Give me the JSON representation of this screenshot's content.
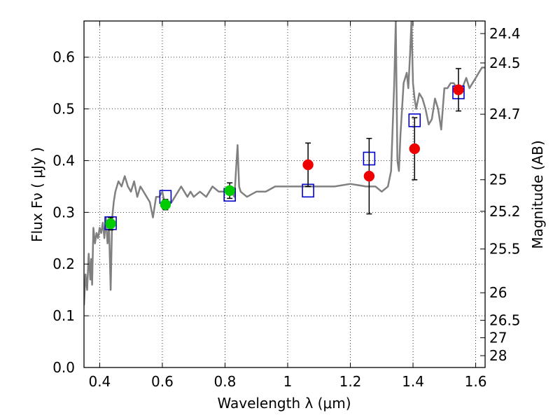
{
  "chart_data": {
    "type": "scatter",
    "xlabel": "Wavelength  λ (μm)",
    "ylabel": "Flux  Fν  ( μJy )",
    "ylabel_right": "Magnitude (AB)",
    "xlim": [
      0.35,
      1.63
    ],
    "ylim": [
      0.0,
      0.67
    ],
    "grid": true,
    "x_ticks": [
      0.4,
      0.6,
      0.8,
      1.0,
      1.2,
      1.4,
      1.6
    ],
    "x_tick_labels": [
      "0.4",
      "0.6",
      "0.8",
      "1",
      "1.2",
      "1.4",
      "1.6"
    ],
    "y_ticks": [
      0.0,
      0.1,
      0.2,
      0.3,
      0.4,
      0.5,
      0.6
    ],
    "y_tick_labels": [
      "0.0",
      "0.1",
      "0.2",
      "0.3",
      "0.4",
      "0.5",
      "0.6"
    ],
    "right_axis_ticks": [
      {
        "flux": 0.6457,
        "label": "24.4"
      },
      {
        "flux": 0.5889,
        "label": "24.5"
      },
      {
        "flux": 0.4898,
        "label": "24.7"
      },
      {
        "flux": 0.3631,
        "label": "25"
      },
      {
        "flux": 0.302,
        "label": "25.2"
      },
      {
        "flux": 0.2291,
        "label": "25.5"
      },
      {
        "flux": 0.1445,
        "label": "26"
      },
      {
        "flux": 0.0912,
        "label": "26.5"
      },
      {
        "flux": 0.0575,
        "label": "27"
      },
      {
        "flux": 0.0229,
        "label": "28"
      }
    ],
    "series": [
      {
        "style": "line",
        "color": "#808080",
        "x": [
          0.35,
          0.355,
          0.36,
          0.365,
          0.37,
          0.373,
          0.376,
          0.38,
          0.385,
          0.39,
          0.395,
          0.4,
          0.405,
          0.41,
          0.415,
          0.42,
          0.425,
          0.43,
          0.435,
          0.44,
          0.445,
          0.45,
          0.46,
          0.47,
          0.48,
          0.49,
          0.5,
          0.51,
          0.52,
          0.53,
          0.54,
          0.55,
          0.56,
          0.57,
          0.58,
          0.59,
          0.6,
          0.61,
          0.62,
          0.63,
          0.64,
          0.65,
          0.66,
          0.67,
          0.68,
          0.69,
          0.7,
          0.72,
          0.74,
          0.76,
          0.78,
          0.8,
          0.82,
          0.83,
          0.835,
          0.84,
          0.845,
          0.85,
          0.87,
          0.9,
          0.93,
          0.96,
          1.0,
          1.05,
          1.1,
          1.15,
          1.2,
          1.25,
          1.28,
          1.3,
          1.32,
          1.33,
          1.34,
          1.345,
          1.35,
          1.355,
          1.36,
          1.37,
          1.38,
          1.385,
          1.39,
          1.395,
          1.4,
          1.405,
          1.41,
          1.42,
          1.43,
          1.44,
          1.45,
          1.46,
          1.47,
          1.48,
          1.49,
          1.5,
          1.51,
          1.52,
          1.53,
          1.54,
          1.55,
          1.56,
          1.57,
          1.58,
          1.59,
          1.6,
          1.61,
          1.62,
          1.63
        ],
        "y": [
          0.12,
          0.18,
          0.15,
          0.22,
          0.17,
          0.21,
          0.16,
          0.27,
          0.24,
          0.26,
          0.25,
          0.27,
          0.26,
          0.28,
          0.25,
          0.29,
          0.24,
          0.27,
          0.15,
          0.29,
          0.32,
          0.34,
          0.36,
          0.35,
          0.37,
          0.35,
          0.34,
          0.36,
          0.33,
          0.35,
          0.34,
          0.33,
          0.32,
          0.29,
          0.33,
          0.33,
          0.34,
          0.31,
          0.32,
          0.32,
          0.33,
          0.34,
          0.35,
          0.34,
          0.33,
          0.34,
          0.33,
          0.34,
          0.33,
          0.35,
          0.34,
          0.34,
          0.34,
          0.33,
          0.38,
          0.43,
          0.35,
          0.34,
          0.33,
          0.34,
          0.34,
          0.35,
          0.35,
          0.35,
          0.35,
          0.35,
          0.355,
          0.35,
          0.35,
          0.34,
          0.35,
          0.38,
          0.55,
          0.67,
          0.4,
          0.38,
          0.45,
          0.55,
          0.57,
          0.54,
          0.6,
          0.67,
          0.55,
          0.52,
          0.5,
          0.53,
          0.52,
          0.5,
          0.47,
          0.48,
          0.52,
          0.5,
          0.46,
          0.54,
          0.54,
          0.55,
          0.55,
          0.54,
          0.54,
          0.545,
          0.56,
          0.54,
          0.55,
          0.56,
          0.57,
          0.58,
          0.58
        ]
      },
      {
        "style": "open-square",
        "color": "#0000cc",
        "x": [
          0.435,
          0.61,
          0.815,
          1.065,
          1.26,
          1.405,
          1.545
        ],
        "y": [
          0.279,
          0.33,
          0.334,
          0.342,
          0.404,
          0.478,
          0.532
        ]
      },
      {
        "style": "filled-circle",
        "color": "#00cc00",
        "x": [
          0.435,
          0.61,
          0.815
        ],
        "y": [
          0.278,
          0.315,
          0.342
        ],
        "yerr": [
          0.012,
          0.01,
          0.015
        ]
      },
      {
        "style": "filled-circle",
        "color": "#ee0000",
        "x": [
          1.065,
          1.26,
          1.405,
          1.545
        ],
        "y": [
          0.392,
          0.37,
          0.423,
          0.537
        ],
        "yerr": [
          0.042,
          0.073,
          0.06,
          0.041
        ]
      }
    ]
  }
}
